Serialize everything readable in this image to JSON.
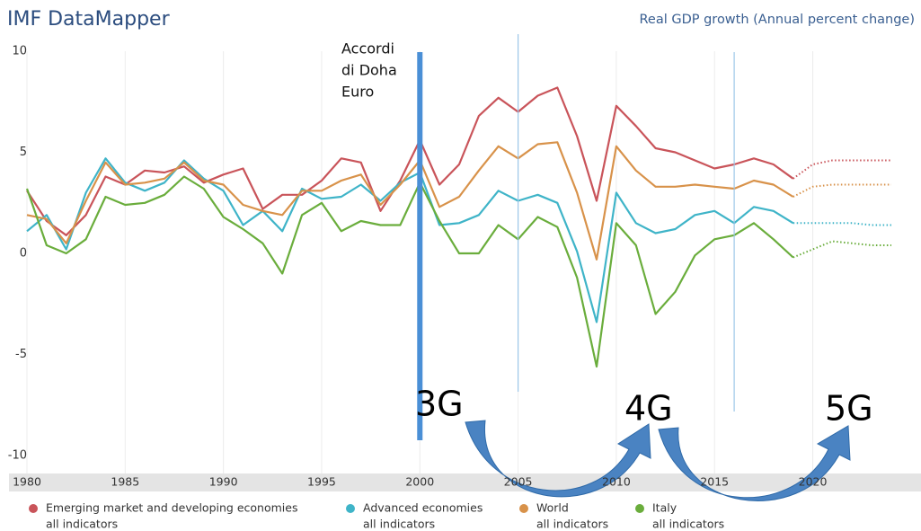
{
  "chart_data": {
    "type": "line",
    "title": "IMF DataMapper",
    "subtitle": "Real GDP growth (Annual percent change)",
    "x": [
      1980,
      1981,
      1982,
      1983,
      1984,
      1985,
      1986,
      1987,
      1988,
      1989,
      1990,
      1991,
      1992,
      1993,
      1994,
      1995,
      1996,
      1997,
      1998,
      1999,
      2000,
      2001,
      2002,
      2003,
      2004,
      2005,
      2006,
      2007,
      2008,
      2009,
      2010,
      2011,
      2012,
      2013,
      2014,
      2015,
      2016,
      2017,
      2018,
      2019,
      2020,
      2021,
      2022,
      2023,
      2024
    ],
    "xlim": [
      1980,
      2024
    ],
    "xticks": [
      1980,
      1985,
      1990,
      1995,
      2000,
      2005,
      2010,
      2015,
      2020
    ],
    "ylim": [
      -10,
      10
    ],
    "yticks": [
      -10,
      -5,
      0,
      5,
      10
    ],
    "grid": true,
    "projection_start": 2019,
    "legend_subtitle": "all indicators",
    "series": [
      {
        "name": "Emerging market and developing economies",
        "color": "#c9545a",
        "values": [
          3.1,
          1.6,
          0.9,
          1.9,
          3.8,
          3.4,
          4.1,
          4.0,
          4.3,
          3.5,
          3.9,
          4.2,
          2.2,
          2.9,
          2.9,
          3.6,
          4.7,
          4.5,
          2.1,
          3.6,
          5.6,
          3.4,
          4.4,
          6.8,
          7.7,
          7.0,
          7.8,
          8.2,
          5.8,
          2.6,
          7.3,
          6.3,
          5.2,
          5.0,
          4.6,
          4.2,
          4.4,
          4.7,
          4.4,
          3.7,
          4.4,
          4.6,
          4.6,
          4.6,
          4.6
        ]
      },
      {
        "name": "Advanced economies",
        "color": "#3fb4c8",
        "values": [
          1.1,
          1.9,
          0.2,
          3.0,
          4.7,
          3.5,
          3.1,
          3.5,
          4.6,
          3.7,
          3.1,
          1.4,
          2.1,
          1.1,
          3.2,
          2.7,
          2.8,
          3.4,
          2.6,
          3.5,
          4.0,
          1.4,
          1.5,
          1.9,
          3.1,
          2.6,
          2.9,
          2.5,
          0.1,
          -3.4,
          3.0,
          1.5,
          1.0,
          1.2,
          1.9,
          2.1,
          1.5,
          2.3,
          2.1,
          1.5,
          1.5,
          1.5,
          1.5,
          1.4,
          1.4
        ]
      },
      {
        "name": "World",
        "color": "#d8924a",
        "values": [
          1.9,
          1.7,
          0.5,
          2.6,
          4.5,
          3.4,
          3.5,
          3.7,
          4.5,
          3.6,
          3.4,
          2.4,
          2.1,
          1.9,
          3.1,
          3.1,
          3.6,
          3.9,
          2.4,
          3.4,
          4.6,
          2.3,
          2.8,
          4.1,
          5.3,
          4.7,
          5.4,
          5.5,
          3.0,
          -0.3,
          5.3,
          4.1,
          3.3,
          3.3,
          3.4,
          3.3,
          3.2,
          3.6,
          3.4,
          2.8,
          3.3,
          3.4,
          3.4,
          3.4,
          3.4
        ]
      },
      {
        "name": "Italy",
        "color": "#6aad3c",
        "values": [
          3.2,
          0.4,
          0.0,
          0.7,
          2.8,
          2.4,
          2.5,
          2.9,
          3.8,
          3.2,
          1.8,
          1.2,
          0.5,
          -1.0,
          1.9,
          2.5,
          1.1,
          1.6,
          1.4,
          1.4,
          3.5,
          1.6,
          0.0,
          0.0,
          1.4,
          0.7,
          1.8,
          1.3,
          -1.2,
          -5.6,
          1.5,
          0.4,
          -3.0,
          -1.9,
          -0.1,
          0.7,
          0.9,
          1.5,
          0.7,
          -0.2,
          0.2,
          0.6,
          0.5,
          0.4,
          0.4
        ]
      }
    ],
    "vertical_markers": [
      2000,
      2005,
      2016
    ],
    "annotation_lines": [
      "Accordi",
      "di Doha",
      "Euro"
    ],
    "generation_labels": [
      "3G",
      "4G",
      "5G"
    ]
  }
}
